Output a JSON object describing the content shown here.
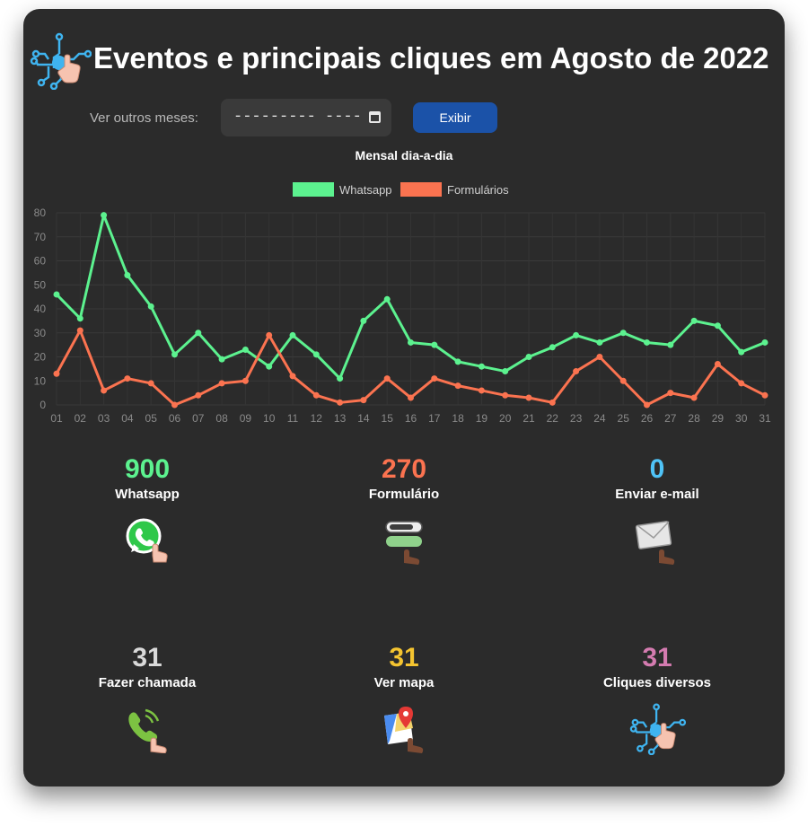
{
  "header": {
    "title": "Eventos e principais cliques em Agosto de 2022",
    "logo_icon": "circuit-click-icon"
  },
  "month_picker": {
    "label": "Ver outros meses:",
    "value": "---------  ----",
    "calendar_icon": "calendar-icon",
    "button_label": "Exibir"
  },
  "chart_data": {
    "type": "line",
    "title": "Mensal dia-a-dia",
    "legend_position": "top-center",
    "grid": true,
    "ylim": [
      0,
      80
    ],
    "y_ticks": [
      0,
      10,
      20,
      30,
      40,
      50,
      60,
      70,
      80
    ],
    "x": [
      "01",
      "02",
      "03",
      "04",
      "05",
      "06",
      "07",
      "08",
      "09",
      "10",
      "11",
      "12",
      "13",
      "14",
      "15",
      "16",
      "17",
      "18",
      "19",
      "20",
      "21",
      "22",
      "23",
      "24",
      "25",
      "26",
      "27",
      "28",
      "29",
      "30",
      "31"
    ],
    "series": [
      {
        "name": "Whatsapp",
        "color": "#5cf28f",
        "values": [
          46,
          36,
          79,
          54,
          41,
          21,
          30,
          19,
          23,
          16,
          29,
          21,
          11,
          35,
          44,
          26,
          25,
          18,
          16,
          14,
          20,
          24,
          29,
          26,
          30,
          26,
          25,
          35,
          33,
          22,
          26
        ]
      },
      {
        "name": "Formulários",
        "color": "#fb7350",
        "values": [
          13,
          31,
          6,
          11,
          9,
          0,
          4,
          9,
          10,
          29,
          12,
          4,
          1,
          2,
          11,
          3,
          11,
          8,
          6,
          4,
          3,
          1,
          14,
          20,
          10,
          0,
          5,
          3,
          17,
          9,
          4
        ]
      }
    ]
  },
  "stats": [
    {
      "value": "900",
      "label": "Whatsapp",
      "color": "#5cf28f",
      "icon": "whatsapp-click-icon"
    },
    {
      "value": "270",
      "label": "Formulário",
      "color": "#fb7350",
      "icon": "form-click-icon"
    },
    {
      "value": "0",
      "label": "Enviar e-mail",
      "color": "#4fc3f7",
      "icon": "email-click-icon"
    },
    {
      "value": "31",
      "label": "Fazer chamada",
      "color": "#d9d9d9",
      "icon": "phone-call-icon"
    },
    {
      "value": "31",
      "label": "Ver mapa",
      "color": "#f4c430",
      "icon": "map-pin-icon"
    },
    {
      "value": "31",
      "label": "Cliques diversos",
      "color": "#d47bb0",
      "icon": "circuit-click-icon"
    }
  ]
}
